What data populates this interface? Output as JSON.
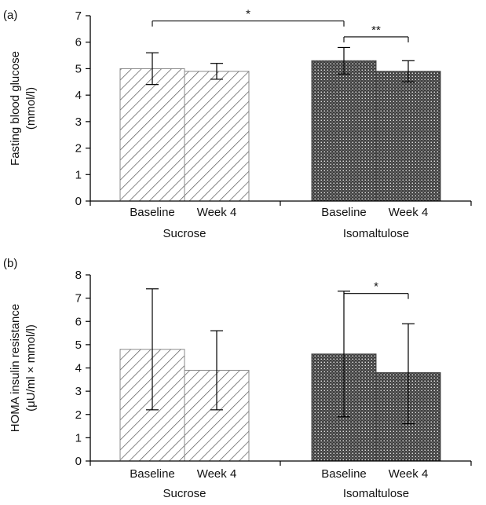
{
  "chart_data": [
    {
      "type": "bar",
      "panel_label": "(a)",
      "ylabel_line1": "Fasting blood glucose",
      "ylabel_line2": "(mmol/l)",
      "ylim": [
        0,
        7
      ],
      "yticks": [
        0,
        1,
        2,
        3,
        4,
        5,
        6,
        7
      ],
      "groups": [
        {
          "name": "Sucrose",
          "pattern": "hatch",
          "bars": [
            {
              "label": "Baseline",
              "value": 5.0,
              "err_low": 4.4,
              "err_high": 5.6
            },
            {
              "label": "Week 4",
              "value": 4.9,
              "err_low": 4.6,
              "err_high": 5.2
            }
          ]
        },
        {
          "name": "Isomaltulose",
          "pattern": "dots",
          "bars": [
            {
              "label": "Baseline",
              "value": 5.3,
              "err_low": 4.8,
              "err_high": 5.8
            },
            {
              "label": "Week 4",
              "value": 4.9,
              "err_low": 4.5,
              "err_high": 5.3
            }
          ]
        }
      ],
      "significance": [
        {
          "from": [
            0,
            0
          ],
          "to": [
            1,
            0
          ],
          "label": "*",
          "level": 6.8
        },
        {
          "from": [
            1,
            0
          ],
          "to": [
            1,
            1
          ],
          "label": "**",
          "level": 6.2
        }
      ]
    },
    {
      "type": "bar",
      "panel_label": "(b)",
      "ylabel_line1": "HOMA insulin resistance",
      "ylabel_line2": "(μU/ml × mmol/l)",
      "ylim": [
        0,
        8
      ],
      "yticks": [
        0,
        1,
        2,
        3,
        4,
        5,
        6,
        7,
        8
      ],
      "groups": [
        {
          "name": "Sucrose",
          "pattern": "hatch",
          "bars": [
            {
              "label": "Baseline",
              "value": 4.8,
              "err_low": 2.2,
              "err_high": 7.4
            },
            {
              "label": "Week 4",
              "value": 3.9,
              "err_low": 2.2,
              "err_high": 5.6
            }
          ]
        },
        {
          "name": "Isomaltulose",
          "pattern": "dots",
          "bars": [
            {
              "label": "Baseline",
              "value": 4.6,
              "err_low": 1.9,
              "err_high": 7.3
            },
            {
              "label": "Week 4",
              "value": 3.8,
              "err_low": 1.6,
              "err_high": 5.9
            }
          ]
        }
      ],
      "significance": [
        {
          "from": [
            1,
            0
          ],
          "to": [
            1,
            1
          ],
          "label": "*",
          "level": 7.2
        }
      ]
    }
  ],
  "colors": {
    "hatch_stroke": "#555555",
    "hatch_border": "#888888",
    "dot_fill_bg": "#3a3a3a",
    "dot_fill_fg": "#d9d9d9",
    "axis": "#000000"
  }
}
